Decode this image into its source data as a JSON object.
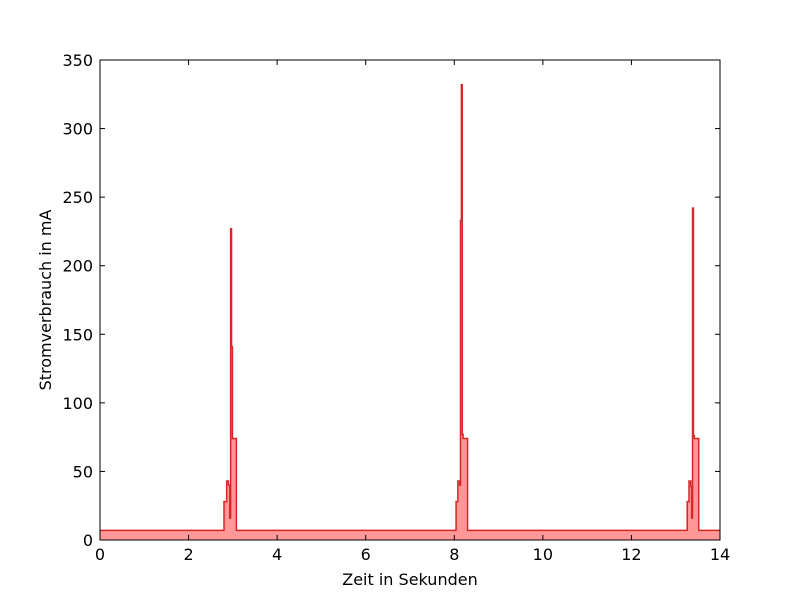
{
  "chart_data": {
    "type": "area",
    "xlabel": "Zeit in Sekunden",
    "ylabel": "Stromverbrauch in mA",
    "xlim": [
      0,
      14
    ],
    "ylim": [
      0,
      350
    ],
    "xticks": [
      0,
      2,
      4,
      6,
      8,
      10,
      12,
      14
    ],
    "yticks": [
      0,
      50,
      100,
      150,
      200,
      250,
      300,
      350
    ],
    "xtick_labels": [
      "0",
      "2",
      "4",
      "6",
      "8",
      "10",
      "12",
      "14"
    ],
    "ytick_labels": [
      "0",
      "50",
      "100",
      "150",
      "200",
      "250",
      "300",
      "350"
    ],
    "grid": false,
    "colors": {
      "line": "#d62728",
      "fill": "#ff9896"
    },
    "series": [
      {
        "x": [
          0,
          2.8,
          2.8,
          2.86,
          2.86,
          2.9,
          2.9,
          2.93,
          2.93,
          2.95,
          2.95,
          2.97,
          2.97,
          2.99,
          2.99,
          3.08,
          3.08,
          8.04,
          8.04,
          8.08,
          8.08,
          8.12,
          8.12,
          8.14,
          8.14,
          8.16,
          8.16,
          8.18,
          8.18,
          8.2,
          8.2,
          8.3,
          8.3,
          13.26,
          13.26,
          13.3,
          13.3,
          13.34,
          13.34,
          13.36,
          13.36,
          13.38,
          13.38,
          13.4,
          13.4,
          13.42,
          13.42,
          13.52,
          13.52,
          14
        ],
        "y": [
          7,
          7,
          28,
          28,
          43,
          43,
          40,
          40,
          16,
          16,
          227,
          227,
          141,
          141,
          74,
          74,
          7,
          7,
          28,
          28,
          43,
          43,
          40,
          40,
          233,
          233,
          332,
          332,
          77,
          77,
          74,
          74,
          7,
          7,
          28,
          28,
          43,
          43,
          39,
          39,
          16,
          16,
          242,
          242,
          76,
          76,
          74,
          74,
          7,
          7
        ]
      }
    ]
  }
}
